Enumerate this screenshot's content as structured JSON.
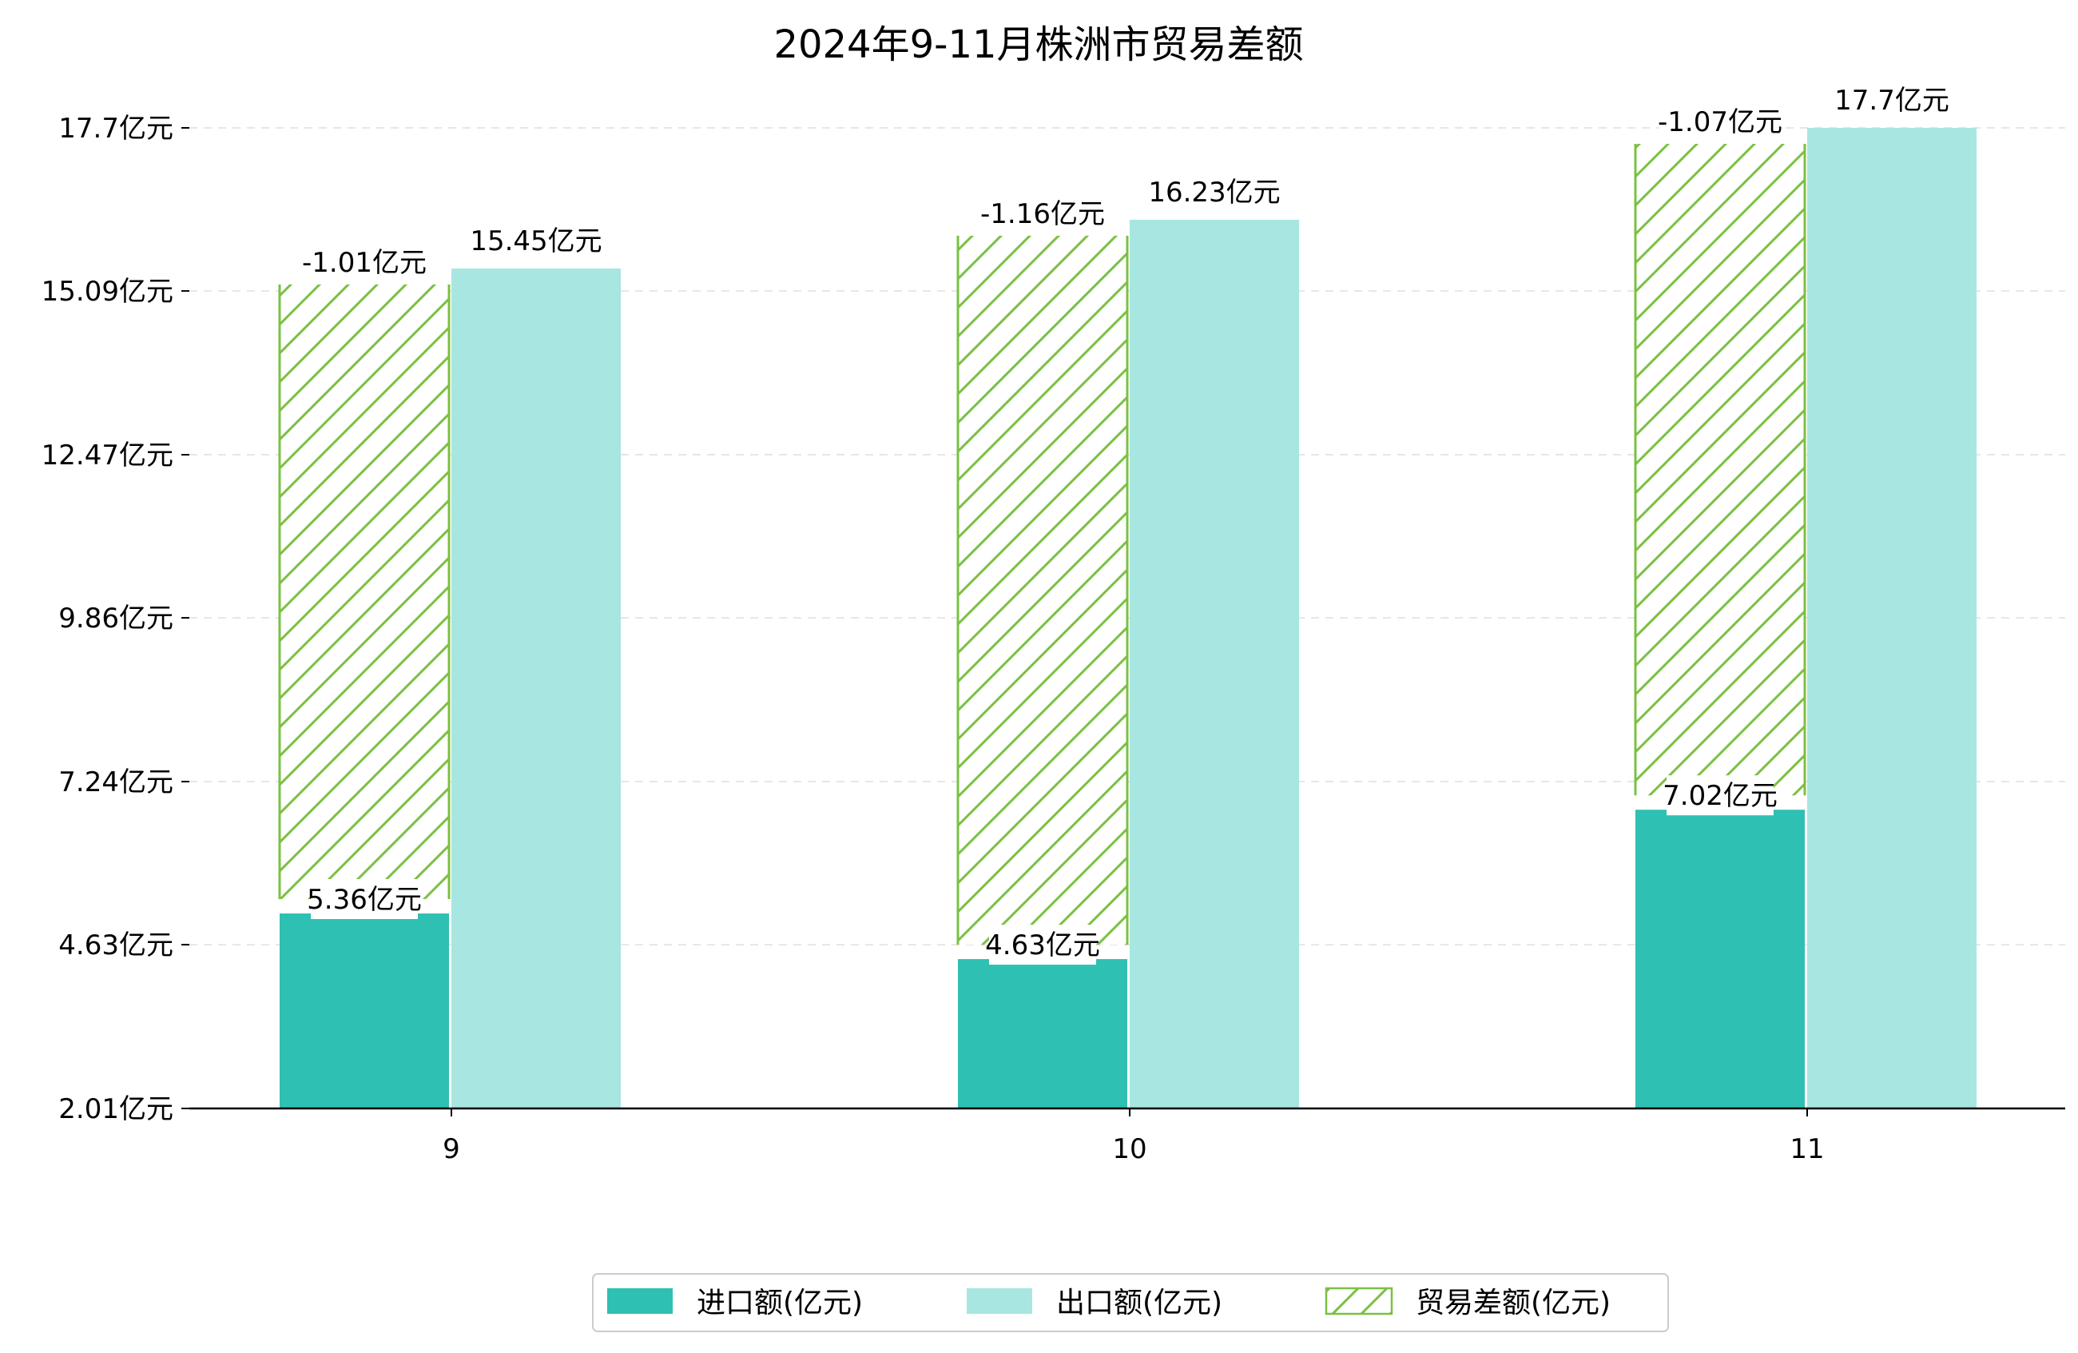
{
  "chart_data": {
    "type": "bar",
    "title": "2024年9-11月株洲市贸易差额",
    "categories": [
      "9",
      "10",
      "11"
    ],
    "series": [
      {
        "name": "进口额(亿元)",
        "values": [
          5.36,
          4.63,
          7.02
        ],
        "labels": [
          "5.36亿元",
          "4.63亿元",
          "7.02亿元"
        ],
        "color": "#2EC0B2"
      },
      {
        "name": "出口额(亿元)",
        "values": [
          15.45,
          16.23,
          17.7
        ],
        "labels": [
          "15.45亿元",
          "16.23亿元",
          "17.7亿元"
        ],
        "color": "#A8E6E1"
      },
      {
        "name": "贸易差额(亿元)",
        "values": [
          -1.01,
          -1.16,
          -1.07
        ],
        "labels": [
          "-1.01亿元",
          "-1.16亿元",
          "-1.07亿元"
        ],
        "color": "#7BC043",
        "pattern": "hatch"
      }
    ],
    "y_ticks": [
      "2.01亿元",
      "4.63亿元",
      "7.24亿元",
      "9.86亿元",
      "12.47亿元",
      "15.09亿元",
      "17.7亿元"
    ],
    "ylim": [
      2.01,
      17.7
    ],
    "grid": true,
    "legend_position": "bottom"
  }
}
